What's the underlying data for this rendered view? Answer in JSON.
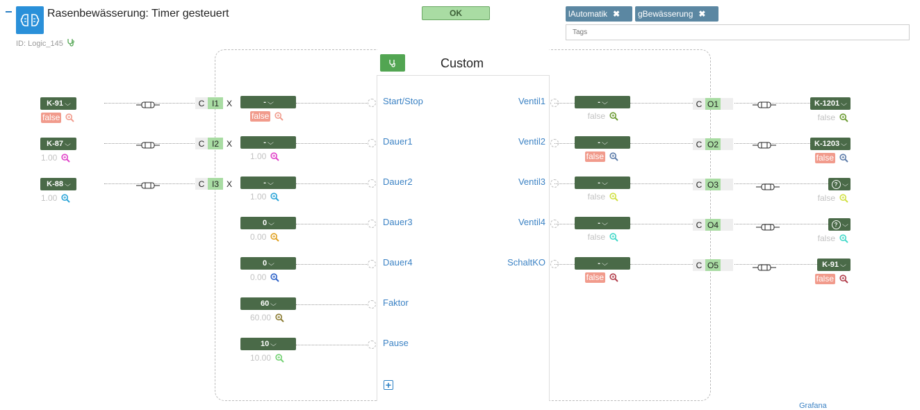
{
  "header": {
    "title": "Rasenbewässerung: Timer gesteuert",
    "id_label": "ID: Logic_145",
    "ok_label": "OK"
  },
  "tags": {
    "items": [
      {
        "label": "lAutomatik"
      },
      {
        "label": "gBewässerung"
      }
    ],
    "placeholder": "Tags"
  },
  "block": {
    "title": "Custom",
    "inputs": [
      "Start/Stop",
      "Dauer1",
      "Dauer2",
      "Dauer3",
      "Dauer4",
      "Faktor",
      "Pause"
    ],
    "outputs": [
      "Ventil1",
      "Ventil2",
      "Ventil3",
      "Ventil4",
      "SchaltKO"
    ]
  },
  "left_sources": [
    {
      "label": "K-91",
      "value": "false",
      "is_bool": true,
      "mag_color": "#f19b8c"
    },
    {
      "label": "K-87",
      "value": "1.00",
      "is_bool": false,
      "mag_color": "#e040c8"
    },
    {
      "label": "K-88",
      "value": "1.00",
      "is_bool": false,
      "mag_color": "#2aa4d8"
    }
  ],
  "input_values": [
    {
      "label": "-",
      "value": "false",
      "is_bool": true,
      "mag_color": "#f19b8c",
      "io": "I1"
    },
    {
      "label": "-",
      "value": "1.00",
      "is_bool": false,
      "mag_color": "#e040c8",
      "io": "I2"
    },
    {
      "label": "-",
      "value": "1.00",
      "is_bool": false,
      "mag_color": "#2aa4d8",
      "io": "I3"
    },
    {
      "label": "0",
      "value": "0.00",
      "is_bool": false,
      "mag_color": "#e0a020"
    },
    {
      "label": "0",
      "value": "0.00",
      "is_bool": false,
      "mag_color": "#2a60c8"
    },
    {
      "label": "60",
      "value": "60.00",
      "is_bool": false,
      "mag_color": "#8a7a30"
    },
    {
      "label": "10",
      "value": "10.00",
      "is_bool": false,
      "mag_color": "#70d070"
    }
  ],
  "output_values": [
    {
      "label": "-",
      "value": "false",
      "is_bool": false,
      "mag_color": "#6a9a30",
      "io": "O1"
    },
    {
      "label": "-",
      "value": "false",
      "is_bool": true,
      "mag_color": "#5a7aa8",
      "io": "O2"
    },
    {
      "label": "-",
      "value": "false",
      "is_bool": false,
      "mag_color": "#d0e040",
      "io": "O3"
    },
    {
      "label": "-",
      "value": "false",
      "is_bool": false,
      "mag_color": "#40d8c8",
      "io": "O4"
    },
    {
      "label": "-",
      "value": "false",
      "is_bool": true,
      "mag_color": "#b03a48",
      "io": "O5"
    }
  ],
  "right_targets": [
    {
      "label": "K-1201",
      "value": "false",
      "is_bool": false,
      "mag_color": "#6a9a30",
      "unknown": false
    },
    {
      "label": "K-1203",
      "value": "false",
      "is_bool": true,
      "mag_color": "#5a7aa8",
      "unknown": false
    },
    {
      "label": "?",
      "value": "false",
      "is_bool": false,
      "mag_color": "#d0e040",
      "unknown": true
    },
    {
      "label": "?",
      "value": "false",
      "is_bool": false,
      "mag_color": "#40d8c8",
      "unknown": true
    },
    {
      "label": "K-91",
      "value": "false",
      "is_bool": true,
      "mag_color": "#b03a48",
      "unknown": false
    }
  ],
  "io_labels": {
    "c": "C",
    "x": "X"
  },
  "footer": {
    "grafana": "Grafana"
  },
  "icons": {
    "logic": "brain-icon",
    "monitor": "stethoscope-icon",
    "search": "magnifier-icon",
    "remove": "close-icon",
    "add": "plus-icon"
  }
}
